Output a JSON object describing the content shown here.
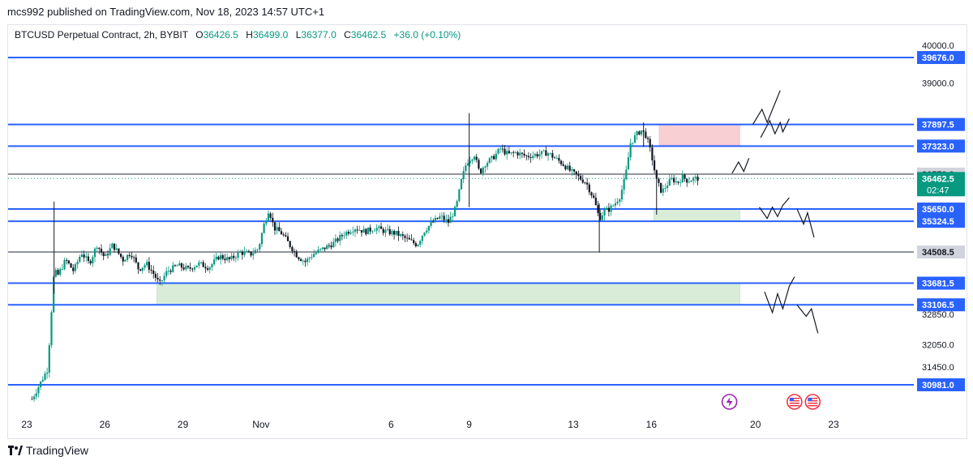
{
  "header": {
    "publisher_line": "mcs992 published on TradingView.com, Nov 18, 2023 14:57 UTC+1"
  },
  "legend": {
    "symbol": "BTCUSD Perpetual Contract, 2h, BYBIT",
    "open_label": "O",
    "open": "36426.5",
    "high_label": "H",
    "high": "36499.0",
    "low_label": "L",
    "low": "36377.0",
    "close_label": "C",
    "close": "36462.5",
    "change": "+36.0 (+0.10%)"
  },
  "footer": {
    "brand": "TradingView"
  },
  "colors": {
    "up": "#089981",
    "down": "#131722",
    "level_line": "#2962ff",
    "grey_line": "#787b86",
    "supply_zone": "#f8d0d4",
    "demand_zone": "#d8ecd8",
    "current_price": "#089981"
  },
  "chart_data": {
    "type": "candlestick",
    "title": "BTCUSD Perpetual Contract, 2h, BYBIT",
    "y_axis_side": "right",
    "y_ticks": [
      40000.0,
      39000.0,
      32850.0,
      32050.0,
      31450.0
    ],
    "x_ticks": [
      {
        "label": "23",
        "day": 23
      },
      {
        "label": "26",
        "day": 26
      },
      {
        "label": "29",
        "day": 29
      },
      {
        "label": "Nov",
        "day": 32
      },
      {
        "label": "6",
        "day": 37
      },
      {
        "label": "9",
        "day": 40
      },
      {
        "label": "13",
        "day": 44
      },
      {
        "label": "16",
        "day": 47
      },
      {
        "label": "20",
        "day": 51
      },
      {
        "label": "23",
        "day": 54
      }
    ],
    "horizontal_levels": [
      {
        "price": 39676.0,
        "label": "39676.0",
        "kind": "blue"
      },
      {
        "price": 37897.5,
        "label": "37897.5",
        "kind": "blue"
      },
      {
        "price": 37323.0,
        "label": "37323.0",
        "kind": "blue"
      },
      {
        "price": 36579.0,
        "label": "36579.0",
        "kind": "grey"
      },
      {
        "price": 35650.0,
        "label": "35650.0",
        "kind": "blue"
      },
      {
        "price": 35324.5,
        "label": "35324.5",
        "kind": "blue"
      },
      {
        "price": 34508.5,
        "label": "34508.5",
        "kind": "grey"
      },
      {
        "price": 33681.5,
        "label": "33681.5",
        "kind": "blue"
      },
      {
        "price": 33106.5,
        "label": "33106.5",
        "kind": "blue"
      },
      {
        "price": 30981.0,
        "label": "30981.0",
        "kind": "blue"
      }
    ],
    "current_price": {
      "price": 36462.5,
      "label": "36462.5",
      "countdown": "02:47"
    },
    "zones": [
      {
        "type": "supply",
        "day_start": 47.3,
        "day_end": 50.4,
        "price_top": 37900.0,
        "price_bottom": 37350.0
      },
      {
        "type": "demand",
        "day_start": 47.1,
        "day_end": 50.4,
        "price_top": 35650.0,
        "price_bottom": 35324.5
      },
      {
        "type": "demand",
        "day_start": 28.0,
        "day_end": 50.4,
        "price_top": 33681.5,
        "price_bottom": 33106.5
      }
    ],
    "projections": [
      [
        [
          50.1,
          36600
        ],
        [
          50.35,
          36900
        ],
        [
          50.55,
          36650
        ],
        [
          50.75,
          37000
        ]
      ],
      [
        [
          50.9,
          37900
        ],
        [
          51.25,
          38300
        ],
        [
          51.45,
          37950
        ],
        [
          51.95,
          38800
        ]
      ],
      [
        [
          51.2,
          37550
        ],
        [
          51.55,
          38000
        ],
        [
          51.75,
          37650
        ],
        [
          51.95,
          37950
        ],
        [
          52.05,
          37700
        ],
        [
          52.3,
          38050
        ]
      ],
      [
        [
          51.15,
          35700
        ],
        [
          51.45,
          35400
        ],
        [
          51.65,
          35700
        ],
        [
          51.85,
          35450
        ],
        [
          52.05,
          35750
        ],
        [
          52.3,
          35950
        ]
      ],
      [
        [
          52.6,
          35650
        ],
        [
          52.85,
          35250
        ],
        [
          53.0,
          35550
        ],
        [
          53.25,
          34900
        ]
      ],
      [
        [
          51.35,
          33450
        ],
        [
          51.65,
          32900
        ],
        [
          51.85,
          33400
        ],
        [
          52.05,
          33000
        ],
        [
          52.3,
          33600
        ],
        [
          52.5,
          33850
        ]
      ],
      [
        [
          52.6,
          33100
        ],
        [
          52.95,
          32800
        ],
        [
          53.15,
          33000
        ],
        [
          53.4,
          32350
        ]
      ]
    ],
    "events": [
      {
        "day": 50.0,
        "icon": "lightning-icon"
      },
      {
        "day": 52.5,
        "icon": "us-flag-icon"
      },
      {
        "day": 53.2,
        "icon": "us-flag-icon"
      }
    ],
    "price_path": [
      [
        23.2,
        30600
      ],
      [
        23.5,
        31000
      ],
      [
        23.8,
        31400
      ],
      [
        24.05,
        34000
      ],
      [
        24.2,
        33900
      ],
      [
        24.5,
        34300
      ],
      [
        24.8,
        34000
      ],
      [
        25.1,
        34500
      ],
      [
        25.4,
        34200
      ],
      [
        25.7,
        34700
      ],
      [
        26.0,
        34350
      ],
      [
        26.3,
        34700
      ],
      [
        26.7,
        34300
      ],
      [
        27.0,
        34500
      ],
      [
        27.3,
        34050
      ],
      [
        27.6,
        34200
      ],
      [
        27.9,
        33900
      ],
      [
        28.1,
        33650
      ],
      [
        28.4,
        34000
      ],
      [
        28.8,
        34150
      ],
      [
        29.2,
        34050
      ],
      [
        29.6,
        34200
      ],
      [
        30.0,
        34100
      ],
      [
        30.4,
        34400
      ],
      [
        30.8,
        34300
      ],
      [
        31.2,
        34500
      ],
      [
        31.6,
        34450
      ],
      [
        31.9,
        34600
      ],
      [
        32.1,
        35200
      ],
      [
        32.3,
        35650
      ],
      [
        32.5,
        35150
      ],
      [
        32.8,
        35000
      ],
      [
        33.1,
        34700
      ],
      [
        33.4,
        34400
      ],
      [
        33.7,
        34250
      ],
      [
        34.0,
        34450
      ],
      [
        34.4,
        34600
      ],
      [
        34.8,
        34750
      ],
      [
        35.2,
        35000
      ],
      [
        35.6,
        35150
      ],
      [
        36.0,
        35050
      ],
      [
        36.4,
        35150
      ],
      [
        36.8,
        35050
      ],
      [
        37.2,
        35000
      ],
      [
        37.6,
        34850
      ],
      [
        38.0,
        34700
      ],
      [
        38.3,
        35100
      ],
      [
        38.6,
        35300
      ],
      [
        38.9,
        35450
      ],
      [
        39.2,
        35300
      ],
      [
        39.5,
        35700
      ],
      [
        39.7,
        36400
      ],
      [
        39.9,
        36900
      ],
      [
        40.2,
        37100
      ],
      [
        40.4,
        36600
      ],
      [
        40.6,
        36850
      ],
      [
        40.9,
        37000
      ],
      [
        41.2,
        37250
      ],
      [
        41.5,
        37100
      ],
      [
        41.8,
        37150
      ],
      [
        42.2,
        37050
      ],
      [
        42.6,
        37100
      ],
      [
        43.0,
        37150
      ],
      [
        43.3,
        37000
      ],
      [
        43.6,
        36850
      ],
      [
        43.9,
        36650
      ],
      [
        44.2,
        36500
      ],
      [
        44.5,
        36350
      ],
      [
        44.8,
        35900
      ],
      [
        45.0,
        35400
      ],
      [
        45.2,
        35600
      ],
      [
        45.4,
        35650
      ],
      [
        45.6,
        35800
      ],
      [
        45.8,
        36000
      ],
      [
        46.0,
        36500
      ],
      [
        46.2,
        37400
      ],
      [
        46.4,
        37600
      ],
      [
        46.6,
        37750
      ],
      [
        46.8,
        37600
      ],
      [
        47.0,
        37100
      ],
      [
        47.2,
        36400
      ],
      [
        47.4,
        36100
      ],
      [
        47.6,
        36300
      ],
      [
        47.8,
        36450
      ],
      [
        48.0,
        36350
      ],
      [
        48.2,
        36500
      ],
      [
        48.4,
        36400
      ],
      [
        48.6,
        36450
      ],
      [
        48.8,
        36470
      ]
    ]
  }
}
